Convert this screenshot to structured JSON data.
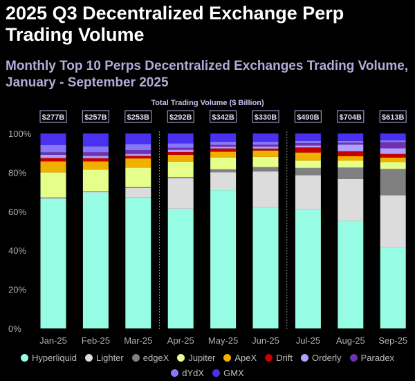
{
  "title": "2025 Q3 Decentralized Exchange Perp Trading Volume",
  "subtitle": "Monthly Top 10 Perps Decentralized Exchanges Trading Volume, January - September 2025",
  "chart_data": {
    "type": "bar",
    "stacked": "percent",
    "totals_label": "Total Trading Volume ($ Billion)",
    "categories": [
      "Jan-25",
      "Feb-25",
      "Mar-25",
      "Apr-25",
      "May-25",
      "Jun-25",
      "Jul-25",
      "Aug-25",
      "Sep-25"
    ],
    "totals": [
      "$277B",
      "$257B",
      "$253B",
      "$292B",
      "$342B",
      "$330B",
      "$490B",
      "$704B",
      "$613B"
    ],
    "quarter_separators_after": [
      "Mar-25",
      "Jun-25"
    ],
    "yticks": [
      "0%",
      "20%",
      "40%",
      "60%",
      "80%",
      "100%"
    ],
    "ylim": [
      0,
      100
    ],
    "legend_position": "bottom",
    "series": [
      {
        "name": "Hyperliquid",
        "color": "#97fce4",
        "values": [
          66.6,
          69.7,
          67.1,
          61.7,
          70.9,
          62.5,
          61.3,
          55.2,
          41.7
        ]
      },
      {
        "name": "Lighter",
        "color": "#dcdcdc",
        "values": [
          0.3,
          0.5,
          4.9,
          15.8,
          9.2,
          18.5,
          17.4,
          21.4,
          26.6
        ]
      },
      {
        "name": "edgeX",
        "color": "#808080",
        "values": [
          0.3,
          0.3,
          0.5,
          0.5,
          1.5,
          2.3,
          3.7,
          5.9,
          13.5
        ]
      },
      {
        "name": "Jupiter",
        "color": "#e6ff8a",
        "values": [
          12.8,
          10.9,
          10.0,
          8.0,
          6.0,
          5.2,
          3.8,
          3.5,
          3.6
        ]
      },
      {
        "name": "ApeX",
        "color": "#f0b000",
        "values": [
          5.7,
          4.3,
          4.7,
          3.5,
          3.0,
          3.3,
          4.1,
          2.3,
          2.2
        ]
      },
      {
        "name": "Drift",
        "color": "#c80000",
        "values": [
          1.7,
          1.6,
          1.3,
          1.4,
          1.7,
          1.0,
          2.6,
          2.6,
          1.9
        ]
      },
      {
        "name": "Orderly",
        "color": "#b0a0ff",
        "values": [
          1.7,
          1.2,
          1.0,
          1.2,
          0.9,
          1.0,
          1.0,
          3.4,
          2.9
        ]
      },
      {
        "name": "Paradex",
        "color": "#7030b0",
        "values": [
          1.2,
          1.8,
          1.9,
          1.0,
          0.9,
          1.0,
          1.2,
          0.9,
          3.1
        ]
      },
      {
        "name": "dYdX",
        "color": "#8878f8",
        "values": [
          3.8,
          3.1,
          3.1,
          2.3,
          1.7,
          1.5,
          1.2,
          1.0,
          1.0
        ]
      },
      {
        "name": "GMX",
        "color": "#4a30f0",
        "values": [
          5.9,
          6.6,
          5.5,
          5.1,
          4.2,
          4.3,
          3.8,
          3.8,
          3.5
        ]
      }
    ]
  }
}
